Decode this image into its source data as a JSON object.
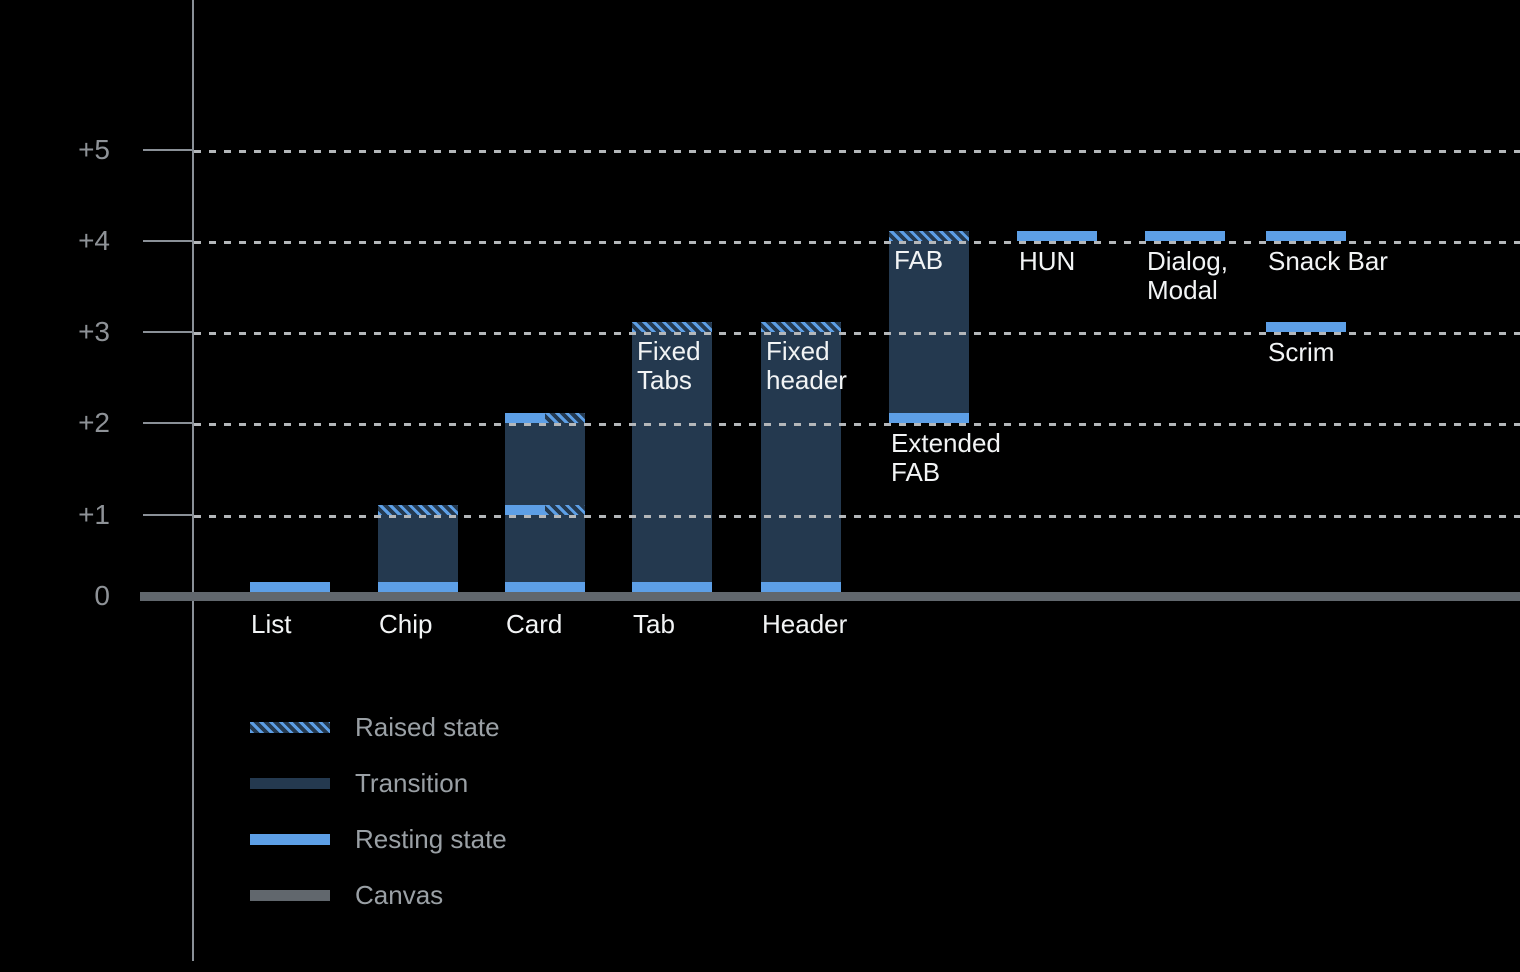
{
  "colors": {
    "background": "#000000",
    "resting_blue": "#5d9fe6",
    "transition_navy": "#24394f",
    "canvas_gray": "#61676d",
    "axis_gray": "#8a9097",
    "grid_dot_gray": "#b4b7ba",
    "ytick_text": "#8e9297",
    "label_white": "#f2f4f5",
    "legend_text": "#9aa0a5"
  },
  "chart_data": {
    "type": "bar",
    "title": "",
    "xlabel": "",
    "ylabel": "",
    "ylim": [
      0,
      5.5
    ],
    "grid": "dotted-horizontal",
    "legend_position": "bottom-left",
    "yticks": [
      {
        "label": "+5",
        "level": 5
      },
      {
        "label": "+4",
        "level": 4
      },
      {
        "label": "+3",
        "level": 3
      },
      {
        "label": "+2",
        "level": 2
      },
      {
        "label": "+1",
        "level": 1
      },
      {
        "label": "0",
        "level": 0
      }
    ],
    "legend": [
      {
        "label": "Raised state",
        "swatch": "hatch"
      },
      {
        "label": "Transition",
        "swatch": "transition"
      },
      {
        "label": "Resting state",
        "swatch": "resting"
      },
      {
        "label": "Canvas",
        "swatch": "canvas"
      }
    ],
    "components": [
      {
        "id": "list",
        "col": 0,
        "axis_label": "List",
        "resting_elevation": 0,
        "raised_elevation": null,
        "bands": [
          {
            "level": 0,
            "style": "resting"
          }
        ]
      },
      {
        "id": "chip",
        "col": 1,
        "axis_label": "Chip",
        "resting_elevation": 0,
        "raised_elevation": 1,
        "body": [
          0,
          1
        ],
        "bands": [
          {
            "level": 1,
            "style": "hatch"
          },
          {
            "level": 0,
            "style": "resting"
          }
        ]
      },
      {
        "id": "card",
        "col": 2,
        "axis_label": "Card",
        "resting_elevation": 0,
        "raised_elevation": 2,
        "mid_elevation": 1,
        "body": [
          0,
          2
        ],
        "bands": [
          {
            "level": 2,
            "style": "half"
          },
          {
            "level": 1,
            "style": "half"
          },
          {
            "level": 0,
            "style": "resting"
          }
        ]
      },
      {
        "id": "tab",
        "col": 3,
        "axis_label": "Tab",
        "resting_elevation": 0,
        "raised_elevation": 3,
        "body": [
          0,
          3
        ],
        "bands": [
          {
            "level": 3,
            "style": "hatch"
          },
          {
            "level": 0,
            "style": "resting"
          }
        ],
        "label_in": {
          "lines": [
            "Fixed",
            "Tabs"
          ],
          "level": 3
        }
      },
      {
        "id": "header",
        "col": 4,
        "axis_label": "Header",
        "resting_elevation": 0,
        "raised_elevation": 3,
        "body": [
          0,
          3
        ],
        "bands": [
          {
            "level": 3,
            "style": "hatch"
          },
          {
            "level": 0,
            "style": "resting"
          }
        ],
        "label_in": {
          "lines": [
            "Fixed",
            "header"
          ],
          "level": 3
        }
      },
      {
        "id": "extended-fab",
        "col": 5,
        "resting_elevation": 2,
        "raised_elevation": 4,
        "body": [
          2,
          4
        ],
        "bands": [
          {
            "level": 4,
            "style": "hatch"
          },
          {
            "level": 2,
            "style": "resting"
          }
        ],
        "label_in": {
          "lines": [
            "FAB"
          ],
          "level": 4
        },
        "label_below": {
          "lines": [
            "Extended",
            "FAB"
          ],
          "level": 2
        }
      },
      {
        "id": "hun",
        "col": 6,
        "resting_elevation": 4,
        "raised_elevation": null,
        "bands": [
          {
            "level": 4,
            "style": "resting"
          }
        ],
        "label_below": {
          "lines": [
            "HUN"
          ],
          "level": 4
        }
      },
      {
        "id": "dialog-modal",
        "col": 7,
        "resting_elevation": 4,
        "raised_elevation": null,
        "bands": [
          {
            "level": 4,
            "style": "resting"
          }
        ],
        "label_below": {
          "lines": [
            "Dialog,",
            "Modal"
          ],
          "level": 4
        }
      },
      {
        "id": "snack-bar",
        "col": 8,
        "resting_elevation": 4,
        "raised_elevation": null,
        "bands": [
          {
            "level": 4,
            "style": "resting"
          }
        ],
        "label_below": {
          "lines": [
            "Snack Bar"
          ],
          "level": 4
        }
      },
      {
        "id": "scrim",
        "col": 8,
        "resting_elevation": 3,
        "raised_elevation": null,
        "bands": [
          {
            "level": 3,
            "style": "resting"
          }
        ],
        "label_below": {
          "lines": [
            "Scrim"
          ],
          "level": 3
        }
      }
    ]
  }
}
